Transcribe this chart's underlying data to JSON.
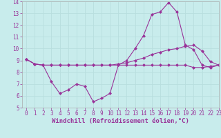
{
  "xlabel": "Windchill (Refroidissement éolien,°C)",
  "xlim": [
    -0.5,
    23
  ],
  "ylim": [
    5,
    14
  ],
  "xticks": [
    0,
    1,
    2,
    3,
    4,
    5,
    6,
    7,
    8,
    9,
    10,
    11,
    12,
    13,
    14,
    15,
    16,
    17,
    18,
    19,
    20,
    21,
    22,
    23
  ],
  "yticks": [
    5,
    6,
    7,
    8,
    9,
    10,
    11,
    12,
    13,
    14
  ],
  "background_color": "#c8ecec",
  "grid_color": "#b8dede",
  "line_color": "#993399",
  "line1_x": [
    0,
    1,
    2,
    3,
    4,
    5,
    6,
    7,
    8,
    9,
    10,
    11,
    12,
    13,
    14,
    15,
    16,
    17,
    18,
    19,
    20,
    21,
    22,
    23
  ],
  "line1_y": [
    9.1,
    8.7,
    8.6,
    7.2,
    6.2,
    6.5,
    7.0,
    6.8,
    5.5,
    5.8,
    6.2,
    8.6,
    8.6,
    8.6,
    8.6,
    8.6,
    8.6,
    8.6,
    8.6,
    8.6,
    8.4,
    8.4,
    8.5,
    8.6
  ],
  "line2_x": [
    0,
    1,
    2,
    3,
    4,
    5,
    6,
    7,
    8,
    9,
    10,
    11,
    12,
    13,
    14,
    15,
    16,
    17,
    18,
    19,
    20,
    21,
    22,
    23
  ],
  "line2_y": [
    9.1,
    8.7,
    8.6,
    8.6,
    8.6,
    8.6,
    8.6,
    8.6,
    8.6,
    8.6,
    8.6,
    8.7,
    8.8,
    9.0,
    9.2,
    9.5,
    9.7,
    9.9,
    10.0,
    10.2,
    10.3,
    9.8,
    8.9,
    8.6
  ],
  "line3_x": [
    0,
    1,
    2,
    3,
    4,
    5,
    6,
    7,
    8,
    9,
    10,
    11,
    12,
    13,
    14,
    15,
    16,
    17,
    18,
    19,
    20,
    21,
    22,
    23
  ],
  "line3_y": [
    9.1,
    8.7,
    8.6,
    8.6,
    8.6,
    8.6,
    8.6,
    8.6,
    8.6,
    8.6,
    8.6,
    8.6,
    9.0,
    10.0,
    11.1,
    12.9,
    13.1,
    13.9,
    13.1,
    10.3,
    9.9,
    8.6,
    8.4,
    8.6
  ],
  "marker": "D",
  "markersize": 2.0,
  "linewidth": 0.8,
  "xlabel_fontsize": 6.5,
  "tick_fontsize": 5.5
}
